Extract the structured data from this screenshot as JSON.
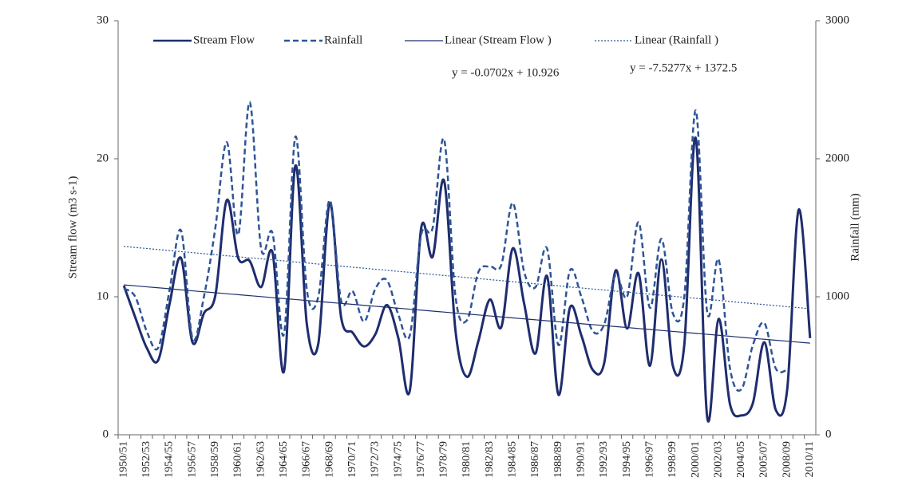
{
  "chart_data": {
    "type": "line",
    "categories": [
      "1950/51",
      null,
      "1952/53",
      null,
      "1954/55",
      null,
      "1956/57",
      null,
      "1958/59",
      null,
      "1960/61",
      null,
      "1962/63",
      null,
      "1964/65",
      null,
      "1966/67",
      null,
      "1968/69",
      null,
      "1970/71",
      null,
      "1972/73",
      null,
      "1974/75",
      null,
      "1976/77",
      null,
      "1978/79",
      null,
      "1980/81",
      null,
      "1982/83",
      null,
      "1984/85",
      null,
      "1986/87",
      null,
      "1988/89",
      null,
      "1990/91",
      null,
      "1992/93",
      null,
      "1994/95",
      null,
      "1996/97",
      null,
      "1998/99",
      null,
      "2000/01",
      null,
      "2002/03",
      null,
      "2004/05",
      null,
      "2005/07",
      null,
      "2008/09",
      null,
      "2010/11"
    ],
    "series": [
      {
        "name": "Stream Flow",
        "color": "#1f2d6e",
        "line_style": "solid",
        "width": 3,
        "axis": "y",
        "values": [
          10.8,
          8.5,
          6.3,
          5.4,
          9.5,
          12.8,
          6.7,
          8.8,
          10.1,
          17,
          12.8,
          12.6,
          10.7,
          13.2,
          4.6,
          19.5,
          8,
          6.6,
          16.8,
          8.5,
          7.4,
          6.4,
          7.3,
          9.4,
          7,
          3.2,
          15,
          12.9,
          18.4,
          7.5,
          4.2,
          6.8,
          9.8,
          7.8,
          13.5,
          9.5,
          5.9,
          11.5,
          2.9,
          9.2,
          7.2,
          4.7,
          5.2,
          11.9,
          7.7,
          11.7,
          5,
          12.7,
          5,
          6.5,
          21.5,
          1.3,
          8.4,
          2.2,
          1.4,
          2.3,
          6.7,
          1.8,
          3.3,
          16.3,
          7
        ]
      },
      {
        "name": "Rainfall",
        "color": "#2e5597",
        "line_style": "dashed",
        "width": 2.5,
        "axis": "y2",
        "values": [
          1060,
          1000,
          750,
          630,
          1050,
          1480,
          700,
          1000,
          1500,
          2120,
          1450,
          2410,
          1350,
          1460,
          730,
          2160,
          1050,
          1000,
          1700,
          970,
          1040,
          820,
          1060,
          1120,
          870,
          720,
          1450,
          1500,
          2140,
          1000,
          830,
          1180,
          1220,
          1230,
          1680,
          1180,
          1070,
          1350,
          650,
          1190,
          1000,
          750,
          800,
          1160,
          1000,
          1540,
          920,
          1420,
          880,
          1000,
          2350,
          890,
          1270,
          480,
          330,
          650,
          810,
          480,
          470,
          null,
          null
        ]
      },
      {
        "name": "Linear (Stream Flow )",
        "color": "#1f2d6e",
        "line_style": "solid",
        "width": 1.2,
        "axis": "y",
        "values": [
          10.86,
          10.79,
          10.72,
          10.65,
          10.58,
          10.5,
          10.43,
          10.36,
          10.29,
          10.22,
          10.15,
          10.08,
          10.01,
          9.94,
          9.87,
          9.8,
          9.73,
          9.66,
          9.59,
          9.52,
          9.45,
          9.38,
          9.31,
          9.24,
          9.17,
          9.1,
          9.03,
          8.96,
          8.89,
          8.82,
          8.75,
          8.68,
          8.61,
          8.54,
          8.47,
          8.4,
          8.33,
          8.26,
          8.19,
          8.12,
          8.05,
          7.98,
          7.91,
          7.84,
          7.77,
          7.7,
          7.63,
          7.56,
          7.49,
          7.42,
          7.35,
          7.28,
          7.21,
          7.14,
          7.06,
          6.99,
          6.92,
          6.85,
          6.78,
          6.71,
          6.64
        ]
      },
      {
        "name": "Linear (Rainfall )",
        "color": "#2e5597",
        "line_style": "dotted",
        "width": 1.2,
        "axis": "y2",
        "values": [
          1365,
          1357,
          1350,
          1342,
          1335,
          1327,
          1320,
          1312,
          1305,
          1297,
          1290,
          1282,
          1275,
          1267,
          1260,
          1252,
          1245,
          1237,
          1229,
          1222,
          1214,
          1207,
          1199,
          1192,
          1184,
          1177,
          1169,
          1162,
          1154,
          1147,
          1139,
          1132,
          1124,
          1117,
          1109,
          1102,
          1094,
          1086,
          1079,
          1071,
          1064,
          1056,
          1049,
          1041,
          1034,
          1026,
          1019,
          1011,
          1004,
          996,
          989,
          981,
          974,
          966,
          958,
          951,
          943,
          936,
          928,
          921,
          913
        ]
      }
    ],
    "ylabel": "Stream flow  (m3 s-1)",
    "y2label": "Rainfall  (mm)",
    "ylim": [
      0,
      30
    ],
    "yticks": [
      0,
      10,
      20,
      30
    ],
    "y2lim": [
      0,
      3000
    ],
    "y2ticks": [
      0,
      1000,
      2000,
      3000
    ],
    "annotations": [
      "y = -0.0702x + 10.926",
      "y = -7.5277x + 1372.5"
    ],
    "legend": "top",
    "grid": false
  }
}
